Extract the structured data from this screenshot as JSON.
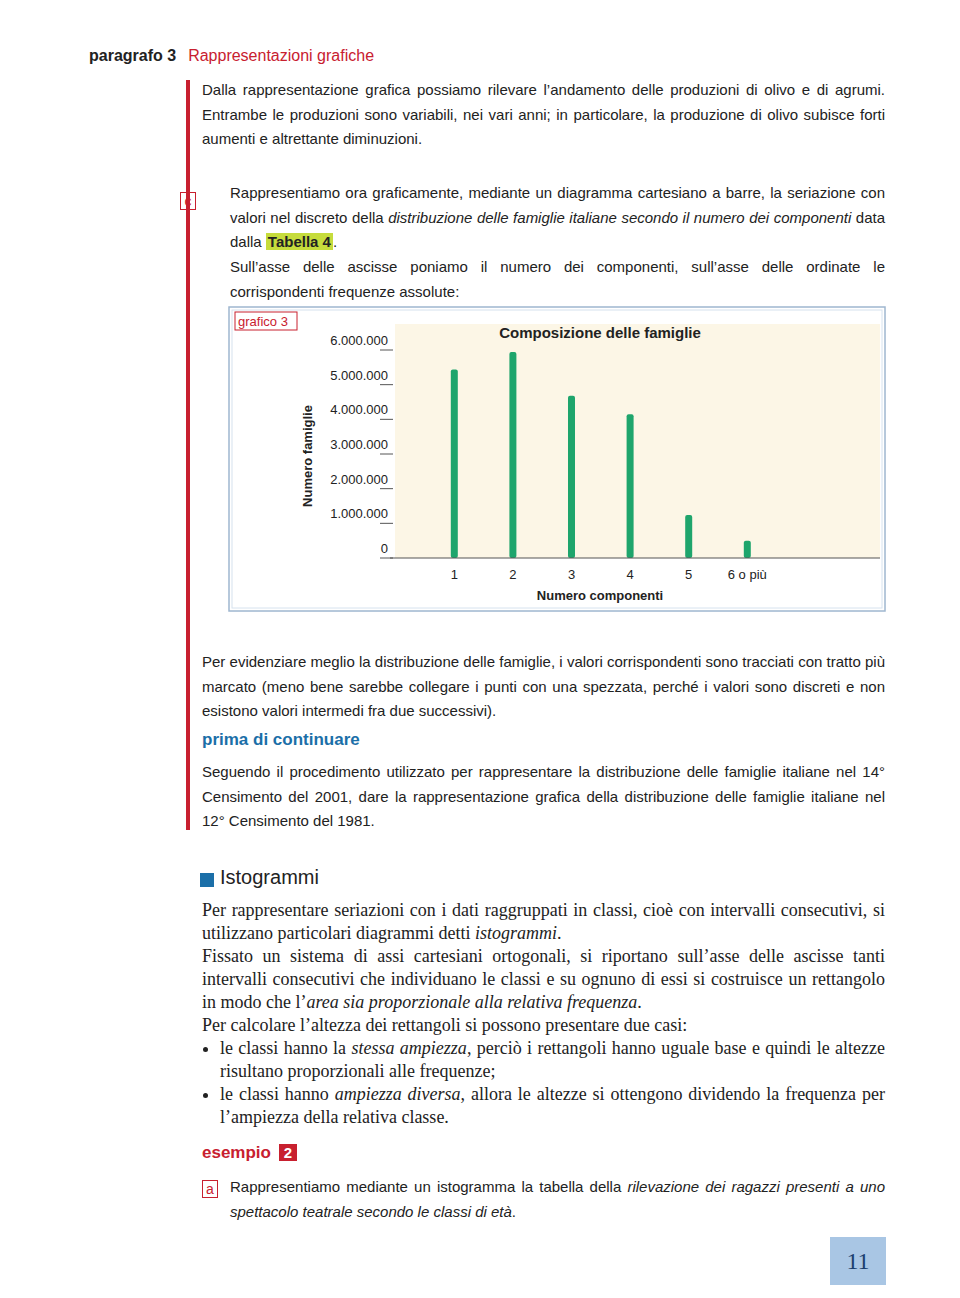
{
  "header": {
    "section": "paragrafo 3",
    "title": "Rappresentazioni grafiche"
  },
  "intro": "Dalla rappresentazione grafica possiamo rilevare l’andamento delle produzioni di olivo e di agrumi. Entrambe le produzioni sono variabili, nei vari anni; in particolare, la produzione di olivo subisce forti aumenti e altrettante diminuzioni.",
  "item_c": {
    "letter": "c",
    "paragraph1": [
      {
        "t": "Rappresentiamo ora graficamente, mediante un diagramma cartesiano a barre, la seriazione con valori nel discreto della "
      },
      {
        "t": "distribuzione delle famiglie italiane secondo il numero dei componenti",
        "em": true
      },
      {
        "t": " data dalla "
      },
      {
        "t": "Tabella 4",
        "highlight": true
      },
      {
        "t": "."
      }
    ],
    "paragraph2": "Sull’asse delle ascisse poniamo il numero dei componenti, sull’asse delle ordinate le corrispondenti frequenze assolute:"
  },
  "chart_data": {
    "type": "bar",
    "tag": "grafico 3",
    "title": "Composizione delle famiglie",
    "x_label": "Numero componenti",
    "y_label": "Numero famiglie",
    "categories": [
      "1",
      "2",
      "3",
      "4",
      "5",
      "6 o più"
    ],
    "values": [
      5440000,
      5940000,
      4680000,
      4150000,
      1240000,
      500000
    ],
    "color": "#1ea56c",
    "ylim": [
      0,
      6000000
    ],
    "yticks": [
      0,
      {
        "value": 1000000,
        "label": "1.000.000"
      },
      {
        "value": 2000000,
        "label": "2.000.000"
      },
      {
        "value": 3000000,
        "label": "3.000.000"
      },
      {
        "value": 4000000,
        "label": "4.000.000"
      },
      {
        "value": 5000000,
        "label": "5.000.000"
      },
      {
        "value": 6000000,
        "label": "6.000.000"
      }
    ],
    "grid": false
  },
  "after_chart": "Per evidenziare meglio la distribuzione delle famiglie, i valori corrispondenti sono tracciati con tratto più marcato (meno bene sarebbe collegare i punti con una spezzata, perché i valori sono discreti e non esistono valori intermedi fra due successivi).",
  "exercise": {
    "heading": "prima di continuare",
    "text": "Seguendo il procedimento utilizzato per rappresentare la distribuzione delle famiglie italiane nel 14° Censimento del 2001, dare la rappresentazione grafica della distribuzione delle famiglie italiane nel 12° Censimento del 1981."
  },
  "histograms": {
    "heading": "Istogrammi",
    "paragraph1": [
      {
        "t": "Per rappresentare seriazioni con i dati raggruppati in classi, cioè con intervalli consecutivi, si utilizzano particolari diagrammi detti "
      },
      {
        "t": "istogrammi",
        "em": true
      },
      {
        "t": "."
      }
    ],
    "paragraph2": [
      {
        "t": "Fissato un sistema di assi cartesiani ortogonali, si riportano sull’asse delle ascisse tanti intervalli consecutivi che individuano le classi e su ognuno di essi si costruisce un rettangolo in modo che l’"
      },
      {
        "t": "area sia proporzionale alla relativa frequenza",
        "em": true
      },
      {
        "t": "."
      }
    ],
    "paragraph3": "Per calcolare l’altezza dei rettangoli si possono presentare due casi:",
    "bullets": [
      [
        {
          "t": "le classi hanno la "
        },
        {
          "t": "stessa ampiezza",
          "em": true
        },
        {
          "t": ", perciò i rettangoli hanno uguale base e quindi le altezze risultano proporzionali alle frequenze;"
        }
      ],
      [
        {
          "t": "le classi hanno "
        },
        {
          "t": "ampiezza diversa",
          "em": true
        },
        {
          "t": ", allora le altezze si ottengono dividendo la frequenza per l’ampiezza della relativa classe."
        }
      ]
    ]
  },
  "example": {
    "label": "esempio",
    "number": "2",
    "item_a": {
      "letter": "a",
      "text": [
        {
          "t": "Rappresentiamo mediante un istogramma la tabella della "
        },
        {
          "t": "rilevazione dei ragazzi presenti a uno spettacolo teatrale secondo le classi di età",
          "em": true
        },
        {
          "t": "."
        }
      ]
    }
  },
  "page_number": "11"
}
